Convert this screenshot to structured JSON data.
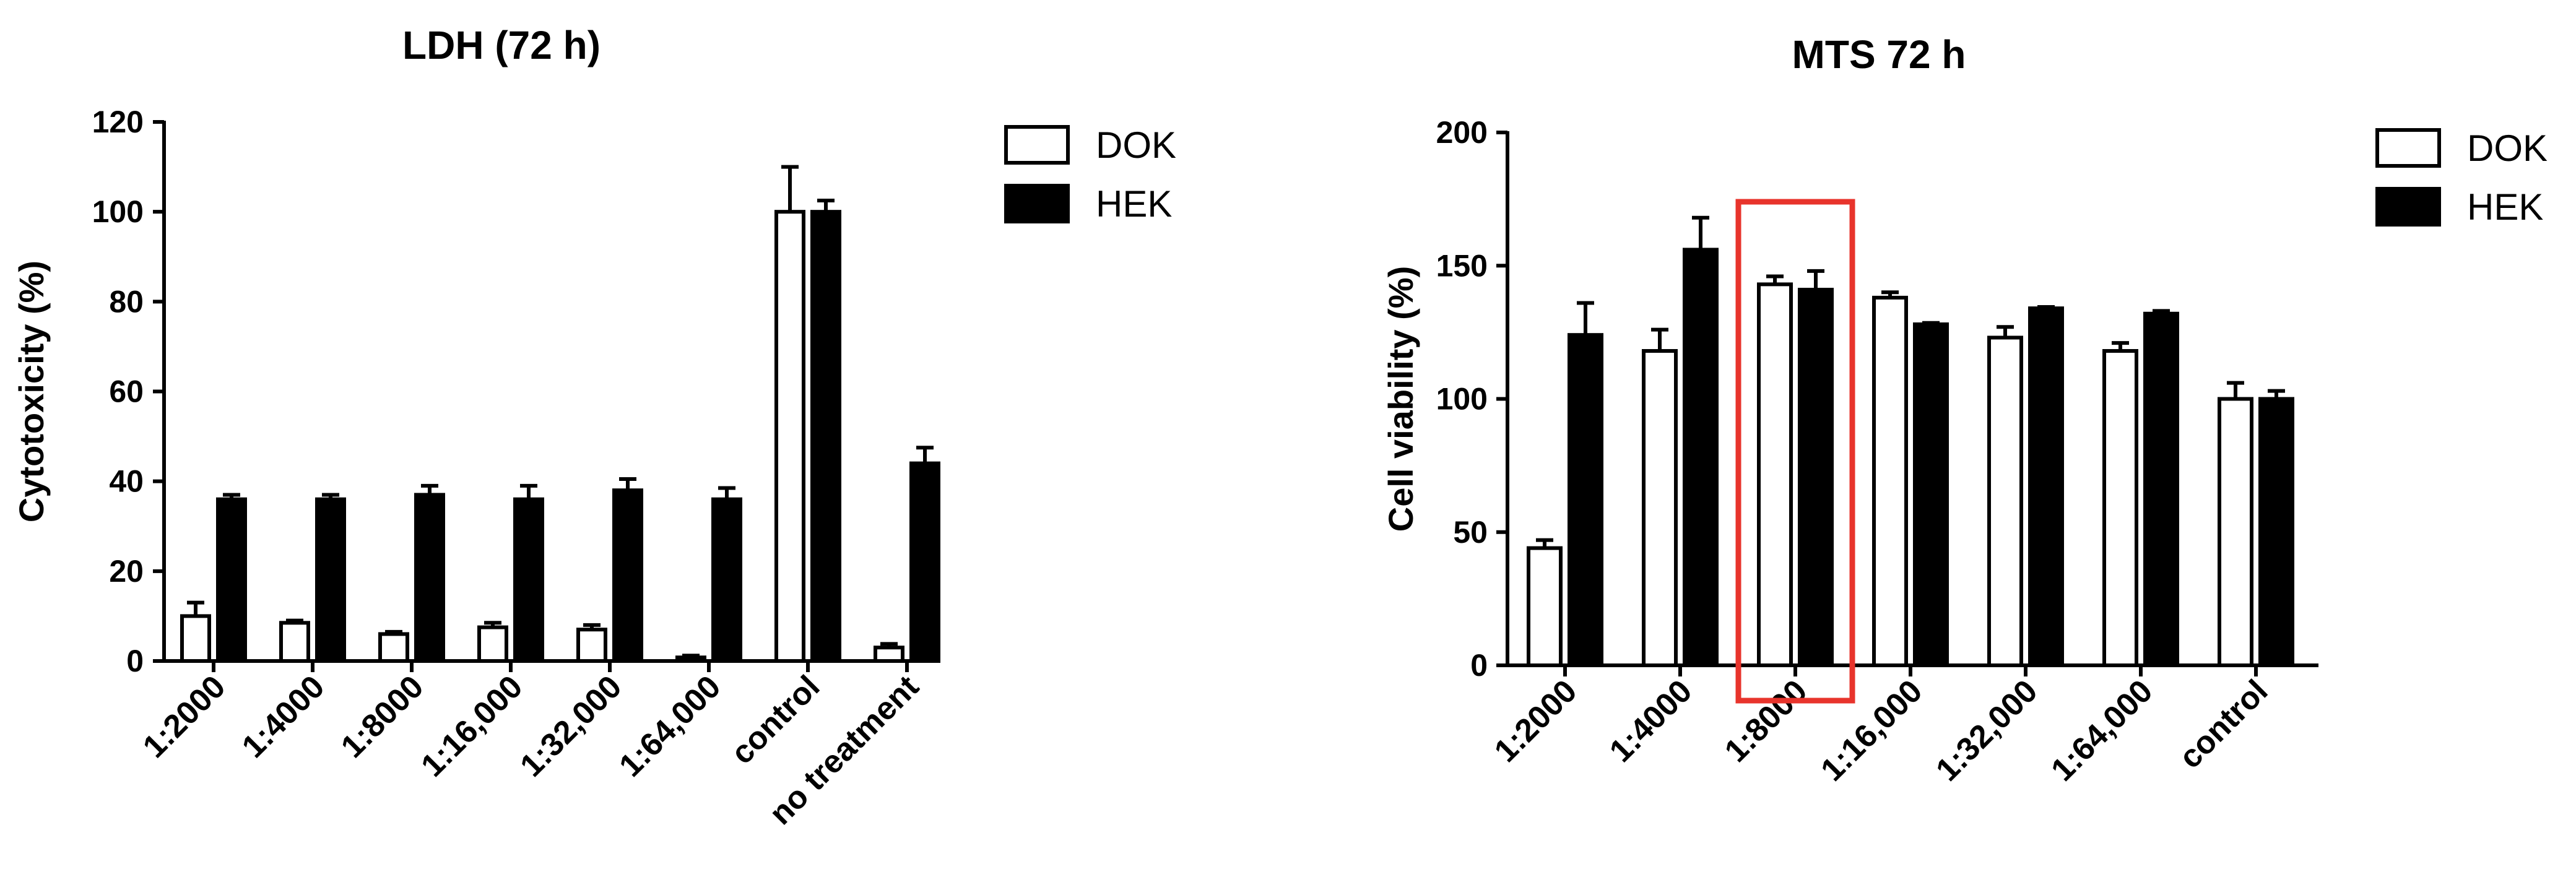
{
  "chart_data": [
    {
      "type": "bar",
      "title": "LDH (72 h)",
      "xlabel": "",
      "ylabel": "Cytotoxicity (%)",
      "ylim": [
        0,
        120
      ],
      "yticks": [
        0,
        20,
        40,
        60,
        80,
        100,
        120
      ],
      "categories": [
        "1:2000",
        "1:4000",
        "1:8000",
        "1:16,000",
        "1:32,000",
        "1:64,000",
        "control",
        "no treatment"
      ],
      "series": [
        {
          "name": "DOK",
          "color": "#ffffff",
          "values": [
            10,
            8.5,
            6,
            7.5,
            7,
            0.8,
            100,
            3
          ],
          "errors": [
            3,
            0.5,
            0.5,
            1,
            1,
            0.4,
            10,
            0.8
          ]
        },
        {
          "name": "HEK",
          "color": "#000000",
          "values": [
            36,
            36,
            37,
            36,
            38,
            36,
            100,
            44
          ],
          "errors": [
            1,
            1,
            2,
            3,
            2.5,
            2.5,
            2.5,
            3.5
          ]
        }
      ],
      "legend": "top-right",
      "grid": false
    },
    {
      "type": "bar",
      "title": "MTS 72 h",
      "xlabel": "",
      "ylabel": "Cell viability (%)",
      "ylim": [
        0,
        200
      ],
      "yticks": [
        0,
        50,
        100,
        150,
        200
      ],
      "categories": [
        "1:2000",
        "1:4000",
        "1:8000",
        "1:16,000",
        "1:32,000",
        "1:64,000",
        "control"
      ],
      "series": [
        {
          "name": "DOK",
          "color": "#ffffff",
          "values": [
            44,
            118,
            143,
            138,
            123,
            118,
            100
          ],
          "errors": [
            3,
            8,
            3,
            2,
            4,
            3,
            6
          ]
        },
        {
          "name": "HEK",
          "color": "#000000",
          "values": [
            124,
            156,
            141,
            128,
            134,
            132,
            100
          ],
          "errors": [
            12,
            12,
            7,
            0.5,
            0.5,
            1,
            3
          ]
        }
      ],
      "highlight": {
        "category": "1:8000",
        "color": "#e8342c"
      },
      "legend": "top-right",
      "grid": false
    }
  ]
}
